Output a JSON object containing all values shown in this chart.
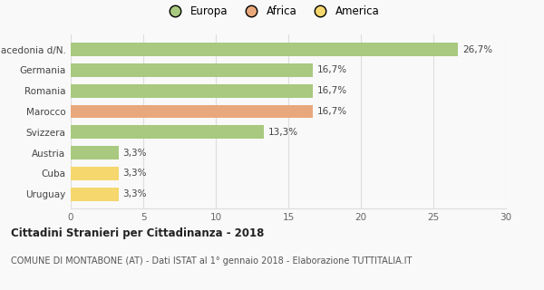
{
  "categories": [
    "Uruguay",
    "Cuba",
    "Austria",
    "Svizzera",
    "Marocco",
    "Romania",
    "Germania",
    "Macedonia d/N."
  ],
  "values": [
    3.3,
    3.3,
    3.3,
    13.3,
    16.7,
    16.7,
    16.7,
    26.7
  ],
  "colors": [
    "#f5d76e",
    "#f5d76e",
    "#a8c97f",
    "#a8c97f",
    "#e8a87c",
    "#a8c97f",
    "#a8c97f",
    "#a8c97f"
  ],
  "labels": [
    "3,3%",
    "3,3%",
    "3,3%",
    "13,3%",
    "16,7%",
    "16,7%",
    "16,7%",
    "26,7%"
  ],
  "legend": [
    {
      "label": "Europa",
      "color": "#a8c97f"
    },
    {
      "label": "Africa",
      "color": "#e8a87c"
    },
    {
      "label": "America",
      "color": "#f5d76e"
    }
  ],
  "title": "Cittadini Stranieri per Cittadinanza - 2018",
  "subtitle": "COMUNE DI MONTABONE (AT) - Dati ISTAT al 1° gennaio 2018 - Elaborazione TUTTITALIA.IT",
  "xlim": [
    0,
    30
  ],
  "xticks": [
    0,
    5,
    10,
    15,
    20,
    25,
    30
  ],
  "background_color": "#f9f9f9",
  "grid_color": "#dddddd"
}
